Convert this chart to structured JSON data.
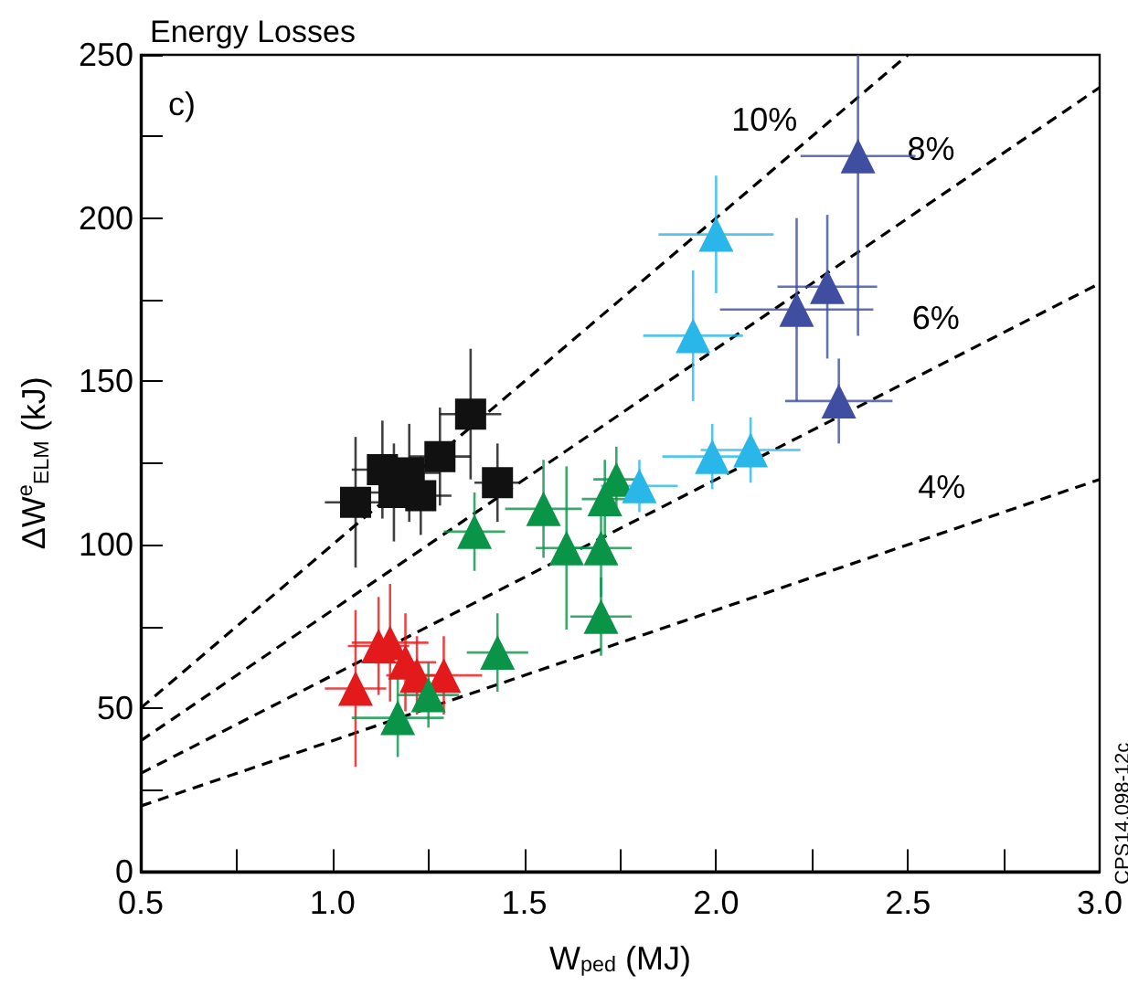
{
  "chart_data": {
    "type": "scatter",
    "title": "Energy Losses",
    "xlabel": "W$_{ped}$ (MJ)",
    "ylabel": "ΔW$^{e}$$_{ELM}$ (kJ)",
    "xlim": [
      0.5,
      3.0
    ],
    "xticks": [
      0.5,
      {
        "value": 0.75,
        "label": null
      },
      "1.0",
      {
        "value": 1.25,
        "label": null
      },
      1.5,
      {
        "value": 1.75,
        "label": null
      },
      "2.0",
      {
        "value": 2.25,
        "label": null
      },
      2.5,
      {
        "value": 2.75,
        "label": null
      },
      "3.0"
    ],
    "ylim": [
      0,
      250
    ],
    "yticks": [
      0,
      {
        "value": 25,
        "label": null
      },
      50,
      {
        "value": 75,
        "label": null
      },
      100,
      {
        "value": 125,
        "label": null
      },
      150,
      {
        "value": 175,
        "label": null
      },
      200,
      {
        "value": 225,
        "label": null
      },
      250
    ],
    "grid": false,
    "annotations": [
      "c)",
      "CPS14.098-12c"
    ],
    "series": [
      {
        "type": "line",
        "name": "10%",
        "color": "#000000",
        "line_style": "dashed",
        "marker": "none",
        "x": [
          0.5,
          2.5
        ],
        "values": [
          50,
          250
        ]
      },
      {
        "type": "line",
        "name": "8%",
        "color": "#000000",
        "line_style": "dashed",
        "marker": "none",
        "x": [
          0.5,
          3.0
        ],
        "values": [
          40,
          240
        ]
      },
      {
        "type": "line",
        "name": "6%",
        "color": "#000000",
        "line_style": "dashed",
        "marker": "none",
        "x": [
          0.5,
          3.0
        ],
        "values": [
          30,
          180
        ]
      },
      {
        "type": "line",
        "name": "4%",
        "color": "#000000",
        "line_style": "dashed",
        "marker": "none",
        "x": [
          0.5,
          3.0
        ],
        "values": [
          20,
          120
        ]
      },
      {
        "color": "#111111",
        "marker": "square",
        "x": [
          1.06,
          1.13,
          1.16,
          1.2,
          1.23,
          1.28,
          1.36,
          1.43
        ],
        "values": [
          113,
          123,
          116,
          122,
          115,
          127,
          140,
          119
        ],
        "errors": [
          20,
          15,
          15,
          15,
          12,
          15,
          20,
          12
        ],
        "xerrors": [
          0.08,
          0.08,
          0.08,
          0.08,
          0.08,
          0.08,
          0.08,
          0.06
        ]
      },
      {
        "color": "#e31a1c",
        "marker": "triangle",
        "x": [
          1.06,
          1.12,
          1.15,
          1.19,
          1.22,
          1.29
        ],
        "values": [
          56,
          69,
          70,
          64,
          60,
          60
        ],
        "errors": [
          24,
          15,
          18,
          15,
          12,
          12
        ],
        "xerrors": [
          0.08,
          0.08,
          0.1,
          0.08,
          0.08,
          0.1
        ]
      },
      {
        "color": "#0a9447",
        "marker": "triangle",
        "x": [
          1.17,
          1.25,
          1.37,
          1.43,
          1.55,
          1.61,
          1.7,
          1.71,
          1.74,
          1.7
        ],
        "values": [
          47,
          54,
          104,
          67,
          111,
          99,
          78,
          114,
          120,
          99
        ],
        "errors": [
          12,
          10,
          12,
          12,
          15,
          25,
          12,
          12,
          10,
          15
        ],
        "xerrors": [
          0.12,
          0.08,
          0.08,
          0.08,
          0.1,
          0.08,
          0.08,
          0.06,
          0.06,
          0.08
        ]
      },
      {
        "color": "#29b6e8",
        "marker": "triangle",
        "x": [
          2.0,
          1.94,
          1.99,
          2.09,
          1.8
        ],
        "values": [
          195,
          164,
          127,
          129,
          118
        ],
        "errors": [
          18,
          20,
          10,
          10,
          8
        ],
        "xerrors": [
          0.15,
          0.13,
          0.13,
          0.13,
          0.1
        ]
      },
      {
        "color": "#3f4ea0",
        "marker": "triangle",
        "x": [
          2.37,
          2.21,
          2.29,
          2.32
        ],
        "values": [
          219,
          172,
          179,
          144
        ],
        "errors": [
          [
            164,
            250
          ],
          28,
          22,
          13
        ],
        "xerrors": [
          0.15,
          0.2,
          0.13,
          0.14
        ]
      }
    ]
  }
}
